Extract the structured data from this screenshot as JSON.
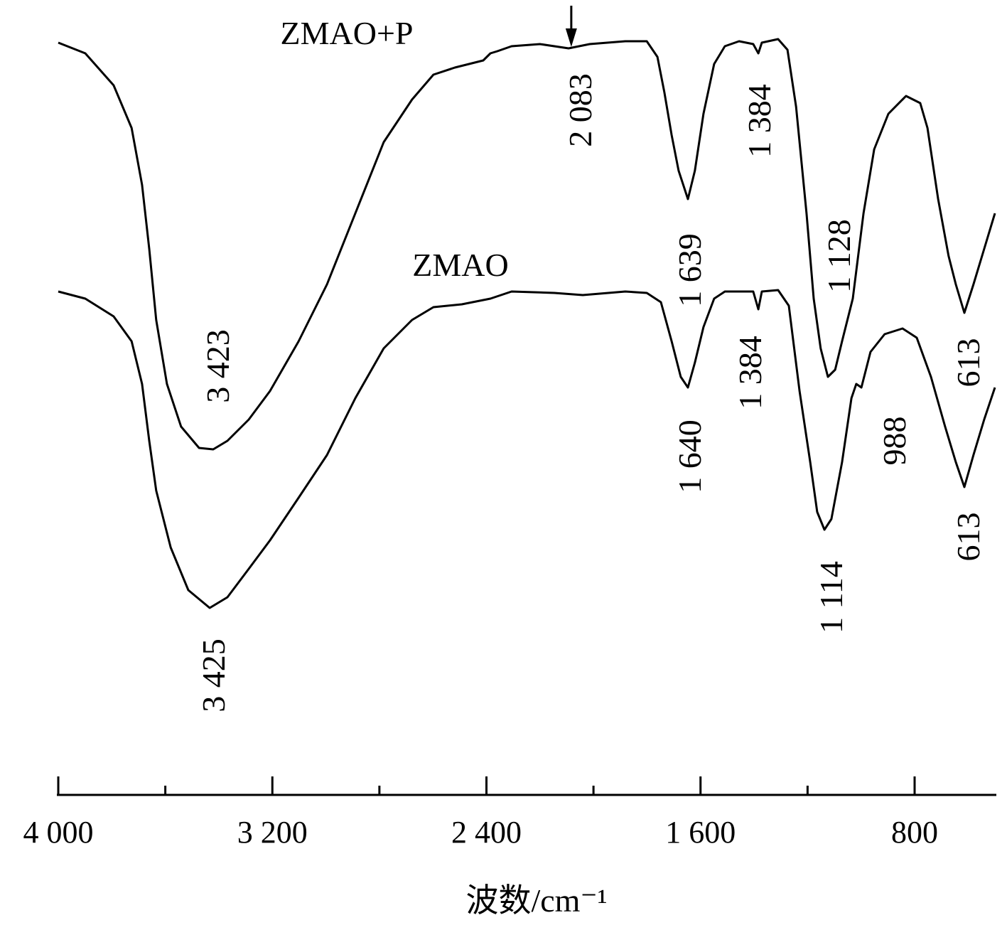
{
  "chart_data": {
    "type": "line",
    "title": "",
    "xlabel": "波数/cm⁻¹",
    "ylabel": "",
    "xlim": [
      4000,
      500
    ],
    "x_reversed": true,
    "y_axis_shown": false,
    "grid": false,
    "x_ticks_major": [
      4000,
      3200,
      2400,
      1600,
      800
    ],
    "x_tick_labels": [
      "4 000",
      "3 200",
      "2 400",
      "1 600",
      "800"
    ],
    "x_ticks_minor": [
      3600,
      2800,
      2000,
      1200
    ],
    "color": "#000000",
    "series": [
      {
        "name": "ZMAO+P",
        "x": [
          4000,
          3899,
          3793,
          3726,
          3687,
          3660,
          3634,
          3594,
          3541,
          3474,
          3421,
          3368,
          3288,
          3209,
          3102,
          2996,
          2890,
          2784,
          2678,
          2598,
          2518,
          2412,
          2385,
          2359,
          2306,
          2200,
          2093,
          2014,
          1881,
          1801,
          1761,
          1735,
          1708,
          1682,
          1647,
          1621,
          1589,
          1549,
          1509,
          1456,
          1403,
          1384,
          1371,
          1310,
          1275,
          1243,
          1204,
          1177,
          1151,
          1124,
          1097,
          1071,
          1031,
          991,
          951,
          898,
          832,
          779,
          752,
          712,
          673,
          646,
          614,
          580,
          540,
          500
        ],
        "y": [
          105.8,
          104.3,
          99.8,
          93.8,
          85.8,
          76.8,
          66.8,
          57.8,
          51.8,
          48.8,
          48.6,
          49.8,
          52.8,
          56.8,
          63.8,
          71.8,
          81.8,
          91.8,
          97.8,
          101.3,
          102.3,
          103.3,
          104.3,
          104.6,
          105.3,
          105.6,
          105.0,
          105.6,
          106.0,
          106.0,
          103.8,
          98.8,
          92.8,
          87.8,
          83.8,
          87.8,
          95.8,
          102.8,
          105.3,
          106.0,
          105.6,
          104.3,
          105.8,
          106.3,
          104.8,
          96.8,
          81.8,
          69.8,
          62.8,
          58.8,
          59.8,
          63.8,
          69.8,
          81.8,
          90.8,
          95.8,
          98.3,
          97.3,
          93.8,
          83.8,
          75.8,
          71.8,
          67.8,
          71.8,
          76.8,
          81.8
        ]
      },
      {
        "name": "ZMAO",
        "x": [
          4000,
          3899,
          3793,
          3726,
          3687,
          3660,
          3634,
          3580,
          3514,
          3434,
          3368,
          3288,
          3209,
          3102,
          2996,
          2890,
          2784,
          2678,
          2598,
          2492,
          2385,
          2306,
          2146,
          2040,
          1881,
          1801,
          1748,
          1708,
          1674,
          1647,
          1621,
          1589,
          1549,
          1509,
          1403,
          1384,
          1371,
          1310,
          1270,
          1230,
          1190,
          1164,
          1137,
          1111,
          1071,
          1036,
          1018,
          999,
          965,
          912,
          845,
          792,
          739,
          686,
          646,
          614,
          580,
          540,
          500
        ],
        "y": [
          70.8,
          69.8,
          67.3,
          63.8,
          57.8,
          49.8,
          42.8,
          34.8,
          28.8,
          26.3,
          27.8,
          31.8,
          35.8,
          41.8,
          47.8,
          55.8,
          62.8,
          66.8,
          68.6,
          69.0,
          69.8,
          70.8,
          70.6,
          70.3,
          70.8,
          70.6,
          69.3,
          63.8,
          58.8,
          57.3,
          60.8,
          65.8,
          69.8,
          70.8,
          70.8,
          68.3,
          70.8,
          71.0,
          68.8,
          56.8,
          46.8,
          39.8,
          37.3,
          38.8,
          46.8,
          55.8,
          57.8,
          57.3,
          62.3,
          64.8,
          65.6,
          64.3,
          58.8,
          51.8,
          46.8,
          43.3,
          47.8,
          52.8,
          57.3
        ]
      }
    ],
    "annotations": [
      {
        "series": "ZMAO+P",
        "text": "ZMAO+P",
        "kind": "series-label"
      },
      {
        "series": "ZMAO",
        "text": "ZMAO",
        "kind": "series-label"
      },
      {
        "series": "ZMAO+P",
        "text": "3 423",
        "x": 3423
      },
      {
        "series": "ZMAO+P",
        "text": "2 083",
        "x": 2083,
        "arrow": true
      },
      {
        "series": "ZMAO+P",
        "text": "1 639",
        "x": 1639
      },
      {
        "series": "ZMAO+P",
        "text": "1 384",
        "x": 1384
      },
      {
        "series": "ZMAO+P",
        "text": "1 128",
        "x": 1128
      },
      {
        "series": "ZMAO+P",
        "text": "613",
        "x": 613
      },
      {
        "series": "ZMAO",
        "text": "3 425",
        "x": 3425
      },
      {
        "series": "ZMAO",
        "text": "1 640",
        "x": 1640
      },
      {
        "series": "ZMAO",
        "text": "1 384",
        "x": 1384
      },
      {
        "series": "ZMAO",
        "text": "1 114",
        "x": 1114
      },
      {
        "series": "ZMAO",
        "text": "988",
        "x": 988
      },
      {
        "series": "ZMAO",
        "text": "613",
        "x": 613
      }
    ]
  }
}
